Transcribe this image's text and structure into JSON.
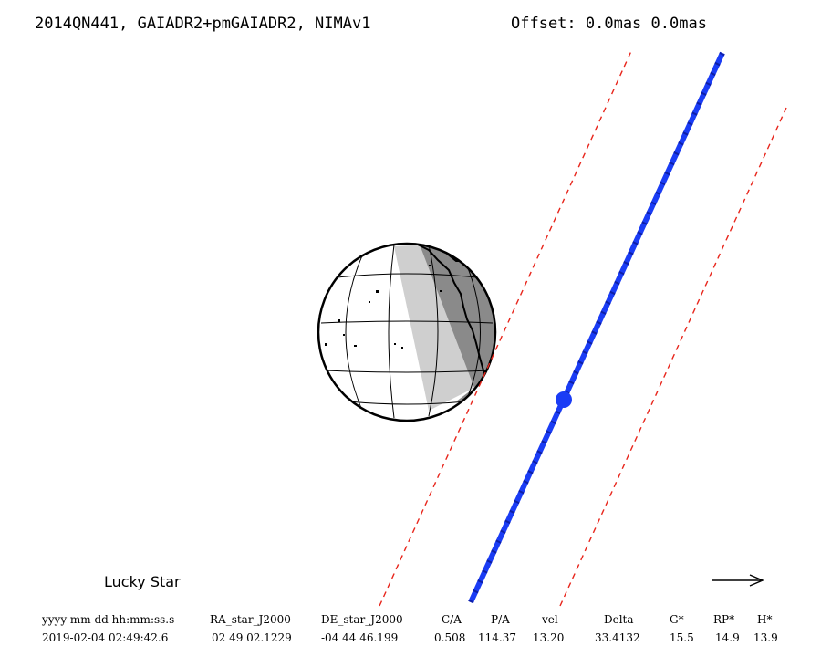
{
  "header": {
    "title": "2014QN441, GAIADR2+pmGAIADR2, NIMAv1",
    "offset": "Offset: 0.0mas 0.0mas"
  },
  "label": "Lucky Star",
  "colors": {
    "central_line": "#1a3cf5",
    "limits": "#e8261c",
    "night_dark": "#8a8a8a",
    "night_light": "#cfcfcf"
  },
  "table": {
    "headers": [
      "yyyy mm dd hh:mm:ss.s",
      "RA_star_J2000",
      "DE_star_J2000",
      "C/A",
      "P/A",
      "vel",
      "Delta",
      "G*",
      "RP*",
      "H*"
    ],
    "values": [
      "2019-02-04 02:49:42.6",
      "02 49 02.1229",
      "-04 44 46.199",
      "0.508",
      "114.37",
      "13.20",
      "33.4132",
      "15.5",
      "14.9",
      "13.9"
    ]
  }
}
